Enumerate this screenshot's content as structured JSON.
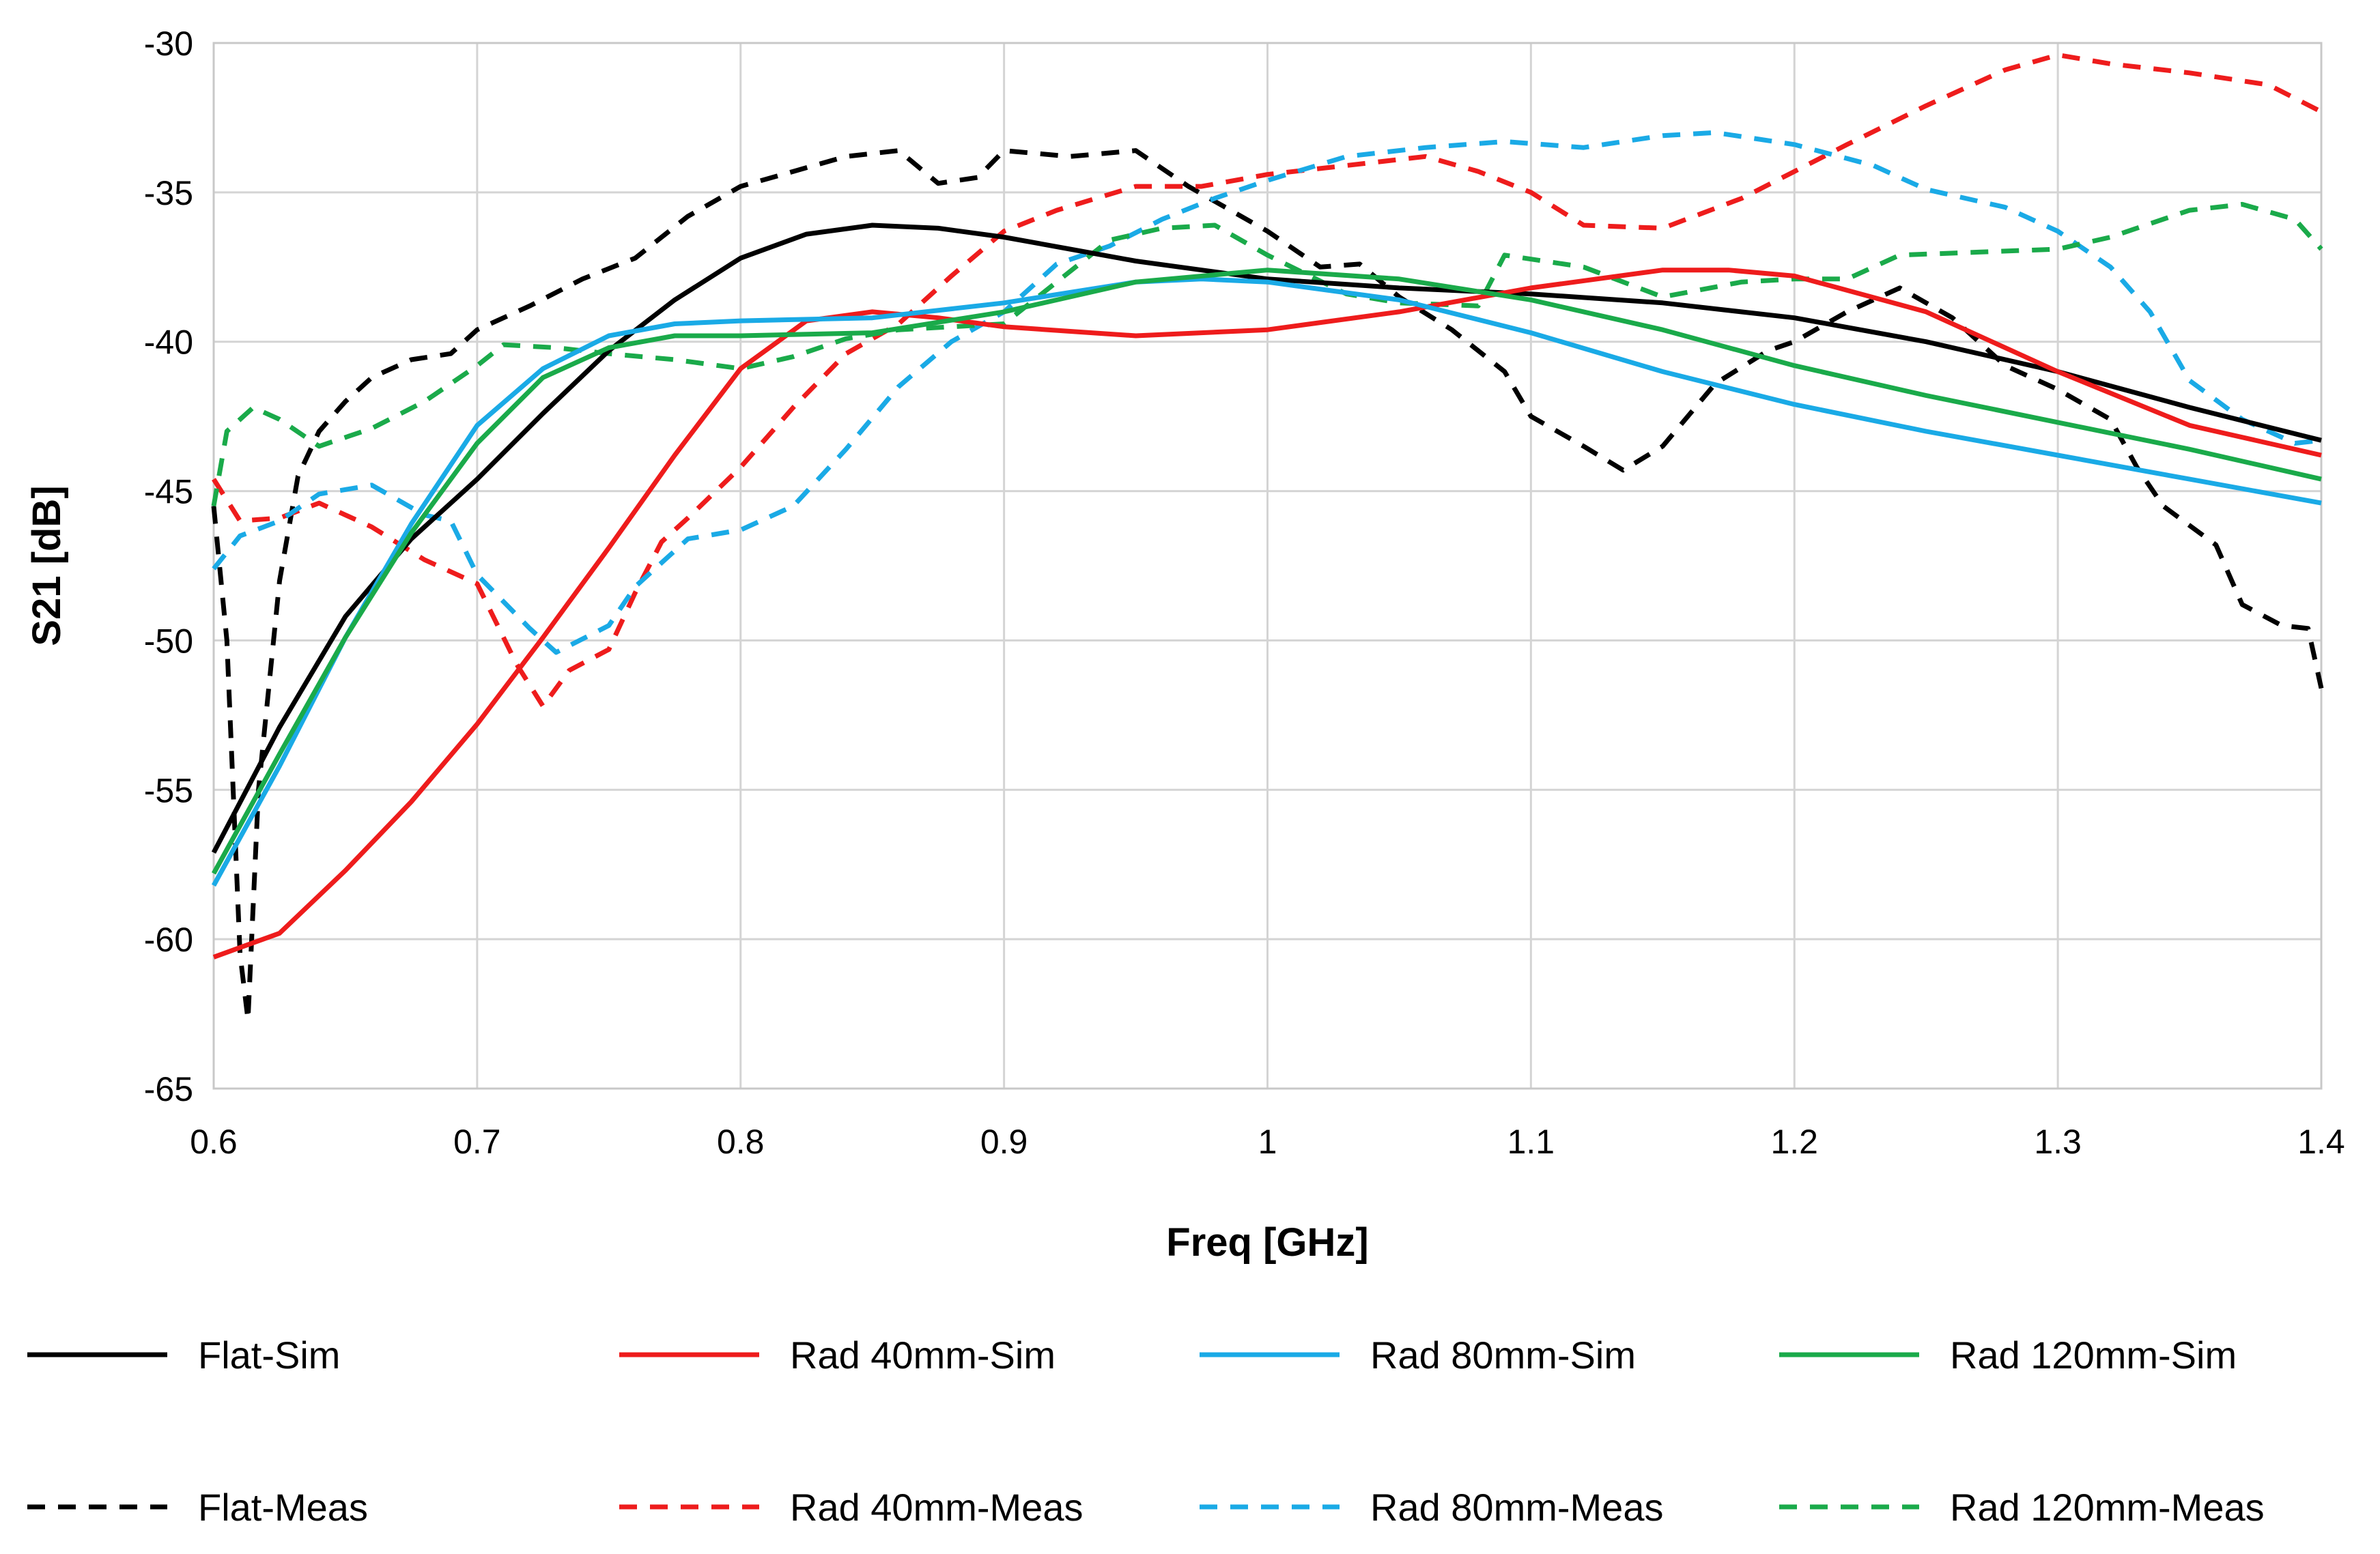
{
  "chart_data": {
    "type": "line",
    "title": "",
    "xlabel": "Freq [GHz]",
    "ylabel": "S21 [dB]",
    "xlim": [
      0.6,
      1.4
    ],
    "ylim": [
      -65,
      -30
    ],
    "grid": true,
    "legend_position": "bottom",
    "x_ticks": [
      "0.6",
      "0.7",
      "0.8",
      "0.9",
      "1",
      "1.1",
      "1.2",
      "1.3",
      "1.4"
    ],
    "x_tick_values": [
      0.6,
      0.7,
      0.8,
      0.9,
      1.0,
      1.1,
      1.2,
      1.3,
      1.4
    ],
    "y_ticks": [
      "-30",
      "-35",
      "-40",
      "-45",
      "-50",
      "-55",
      "-60",
      "-65"
    ],
    "y_tick_values": [
      -30,
      -35,
      -40,
      -45,
      -50,
      -55,
      -60,
      -65
    ],
    "series": [
      {
        "name": "Flat-Sim",
        "color": "#000000",
        "dash": "solid",
        "points": [
          [
            0.6,
            -57.1
          ],
          [
            0.625,
            -52.9
          ],
          [
            0.65,
            -49.2
          ],
          [
            0.675,
            -46.6
          ],
          [
            0.7,
            -44.6
          ],
          [
            0.725,
            -42.4
          ],
          [
            0.75,
            -40.3
          ],
          [
            0.775,
            -38.6
          ],
          [
            0.8,
            -37.2
          ],
          [
            0.825,
            -36.4
          ],
          [
            0.85,
            -36.1
          ],
          [
            0.875,
            -36.2
          ],
          [
            0.9,
            -36.5
          ],
          [
            0.925,
            -36.9
          ],
          [
            0.95,
            -37.3
          ],
          [
            0.975,
            -37.6
          ],
          [
            1.0,
            -37.9
          ],
          [
            1.05,
            -38.2
          ],
          [
            1.1,
            -38.4
          ],
          [
            1.15,
            -38.7
          ],
          [
            1.2,
            -39.2
          ],
          [
            1.25,
            -40.0
          ],
          [
            1.3,
            -41.0
          ],
          [
            1.35,
            -42.2
          ],
          [
            1.4,
            -43.3
          ]
        ]
      },
      {
        "name": "Rad 40mm-Sim",
        "color": "#ee1c1c",
        "dash": "solid",
        "points": [
          [
            0.6,
            -60.6
          ],
          [
            0.625,
            -59.8
          ],
          [
            0.65,
            -57.7
          ],
          [
            0.675,
            -55.4
          ],
          [
            0.7,
            -52.8
          ],
          [
            0.725,
            -49.9
          ],
          [
            0.75,
            -46.9
          ],
          [
            0.775,
            -43.8
          ],
          [
            0.8,
            -40.9
          ],
          [
            0.825,
            -39.3
          ],
          [
            0.85,
            -39.0
          ],
          [
            0.875,
            -39.2
          ],
          [
            0.9,
            -39.5
          ],
          [
            0.95,
            -39.8
          ],
          [
            1.0,
            -39.6
          ],
          [
            1.05,
            -39.0
          ],
          [
            1.1,
            -38.2
          ],
          [
            1.15,
            -37.6
          ],
          [
            1.175,
            -37.6
          ],
          [
            1.2,
            -37.8
          ],
          [
            1.25,
            -39.0
          ],
          [
            1.3,
            -41.0
          ],
          [
            1.35,
            -42.8
          ],
          [
            1.4,
            -43.8
          ]
        ]
      },
      {
        "name": "Rad 80mm-Sim",
        "color": "#1aaae6",
        "dash": "solid",
        "points": [
          [
            0.6,
            -58.2
          ],
          [
            0.625,
            -54.2
          ],
          [
            0.65,
            -49.9
          ],
          [
            0.675,
            -46.1
          ],
          [
            0.7,
            -42.8
          ],
          [
            0.725,
            -40.9
          ],
          [
            0.75,
            -39.8
          ],
          [
            0.775,
            -39.4
          ],
          [
            0.8,
            -39.3
          ],
          [
            0.85,
            -39.2
          ],
          [
            0.9,
            -38.7
          ],
          [
            0.95,
            -38.0
          ],
          [
            0.975,
            -37.9
          ],
          [
            1.0,
            -38.0
          ],
          [
            1.05,
            -38.6
          ],
          [
            1.1,
            -39.7
          ],
          [
            1.15,
            -41.0
          ],
          [
            1.2,
            -42.1
          ],
          [
            1.25,
            -43.0
          ],
          [
            1.3,
            -43.8
          ],
          [
            1.35,
            -44.6
          ],
          [
            1.4,
            -45.4
          ]
        ]
      },
      {
        "name": "Rad 120mm-Sim",
        "color": "#1aaa4a",
        "dash": "solid",
        "points": [
          [
            0.6,
            -57.8
          ],
          [
            0.625,
            -53.8
          ],
          [
            0.65,
            -49.9
          ],
          [
            0.675,
            -46.4
          ],
          [
            0.7,
            -43.4
          ],
          [
            0.725,
            -41.2
          ],
          [
            0.75,
            -40.2
          ],
          [
            0.775,
            -39.8
          ],
          [
            0.8,
            -39.8
          ],
          [
            0.85,
            -39.7
          ],
          [
            0.9,
            -39.0
          ],
          [
            0.95,
            -38.0
          ],
          [
            1.0,
            -37.6
          ],
          [
            1.05,
            -37.9
          ],
          [
            1.1,
            -38.6
          ],
          [
            1.15,
            -39.6
          ],
          [
            1.2,
            -40.8
          ],
          [
            1.25,
            -41.8
          ],
          [
            1.3,
            -42.7
          ],
          [
            1.35,
            -43.6
          ],
          [
            1.4,
            -44.6
          ]
        ]
      },
      {
        "name": "Flat-Meas",
        "color": "#000000",
        "dash": "dashed",
        "points": [
          [
            0.6,
            -45.5
          ],
          [
            0.605,
            -50.0
          ],
          [
            0.61,
            -60.5
          ],
          [
            0.613,
            -62.7
          ],
          [
            0.617,
            -55.0
          ],
          [
            0.625,
            -48.0
          ],
          [
            0.632,
            -44.5
          ],
          [
            0.64,
            -43.0
          ],
          [
            0.65,
            -42.0
          ],
          [
            0.66,
            -41.2
          ],
          [
            0.675,
            -40.6
          ],
          [
            0.69,
            -40.4
          ],
          [
            0.7,
            -39.6
          ],
          [
            0.72,
            -38.8
          ],
          [
            0.74,
            -37.9
          ],
          [
            0.76,
            -37.2
          ],
          [
            0.78,
            -35.8
          ],
          [
            0.8,
            -34.8
          ],
          [
            0.82,
            -34.3
          ],
          [
            0.84,
            -33.8
          ],
          [
            0.86,
            -33.6
          ],
          [
            0.875,
            -34.7
          ],
          [
            0.89,
            -34.5
          ],
          [
            0.9,
            -33.6
          ],
          [
            0.925,
            -33.8
          ],
          [
            0.95,
            -33.6
          ],
          [
            0.97,
            -34.8
          ],
          [
            1.0,
            -36.3
          ],
          [
            1.02,
            -37.5
          ],
          [
            1.035,
            -37.4
          ],
          [
            1.05,
            -38.5
          ],
          [
            1.07,
            -39.6
          ],
          [
            1.09,
            -41.0
          ],
          [
            1.1,
            -42.5
          ],
          [
            1.12,
            -43.5
          ],
          [
            1.135,
            -44.3
          ],
          [
            1.15,
            -43.5
          ],
          [
            1.17,
            -41.4
          ],
          [
            1.19,
            -40.3
          ],
          [
            1.2,
            -40.0
          ],
          [
            1.22,
            -39.0
          ],
          [
            1.24,
            -38.2
          ],
          [
            1.26,
            -39.2
          ],
          [
            1.28,
            -40.8
          ],
          [
            1.3,
            -41.6
          ],
          [
            1.32,
            -42.6
          ],
          [
            1.33,
            -44.2
          ],
          [
            1.34,
            -45.5
          ],
          [
            1.36,
            -46.8
          ],
          [
            1.37,
            -48.8
          ],
          [
            1.385,
            -49.5
          ],
          [
            1.395,
            -49.6
          ],
          [
            1.4,
            -51.6
          ]
        ]
      },
      {
        "name": "Rad 40mm-Meas",
        "color": "#ee1c1c",
        "dash": "dashed",
        "points": [
          [
            0.6,
            -44.6
          ],
          [
            0.61,
            -46.0
          ],
          [
            0.625,
            -45.9
          ],
          [
            0.64,
            -45.4
          ],
          [
            0.66,
            -46.2
          ],
          [
            0.68,
            -47.3
          ],
          [
            0.7,
            -48.1
          ],
          [
            0.715,
            -50.8
          ],
          [
            0.725,
            -52.2
          ],
          [
            0.735,
            -51.0
          ],
          [
            0.75,
            -50.3
          ],
          [
            0.76,
            -48.4
          ],
          [
            0.77,
            -46.7
          ],
          [
            0.78,
            -45.9
          ],
          [
            0.8,
            -44.2
          ],
          [
            0.82,
            -42.2
          ],
          [
            0.84,
            -40.4
          ],
          [
            0.86,
            -39.4
          ],
          [
            0.88,
            -37.8
          ],
          [
            0.9,
            -36.3
          ],
          [
            0.92,
            -35.6
          ],
          [
            0.95,
            -34.8
          ],
          [
            0.975,
            -34.8
          ],
          [
            1.0,
            -34.4
          ],
          [
            1.03,
            -34.1
          ],
          [
            1.06,
            -33.8
          ],
          [
            1.08,
            -34.3
          ],
          [
            1.1,
            -35.0
          ],
          [
            1.12,
            -36.1
          ],
          [
            1.15,
            -36.2
          ],
          [
            1.18,
            -35.2
          ],
          [
            1.2,
            -34.3
          ],
          [
            1.22,
            -33.4
          ],
          [
            1.25,
            -32.1
          ],
          [
            1.28,
            -30.9
          ],
          [
            1.3,
            -30.4
          ],
          [
            1.32,
            -30.7
          ],
          [
            1.35,
            -31.0
          ],
          [
            1.38,
            -31.4
          ],
          [
            1.4,
            -32.3
          ]
        ]
      },
      {
        "name": "Rad 80mm-Meas",
        "color": "#1aaae6",
        "dash": "dashed",
        "points": [
          [
            0.6,
            -47.6
          ],
          [
            0.61,
            -46.5
          ],
          [
            0.625,
            -46.0
          ],
          [
            0.64,
            -45.1
          ],
          [
            0.66,
            -44.8
          ],
          [
            0.68,
            -45.8
          ],
          [
            0.69,
            -46.0
          ],
          [
            0.7,
            -47.8
          ],
          [
            0.72,
            -49.6
          ],
          [
            0.73,
            -50.4
          ],
          [
            0.75,
            -49.5
          ],
          [
            0.76,
            -48.2
          ],
          [
            0.78,
            -46.6
          ],
          [
            0.8,
            -46.3
          ],
          [
            0.82,
            -45.5
          ],
          [
            0.84,
            -43.6
          ],
          [
            0.86,
            -41.5
          ],
          [
            0.88,
            -40.0
          ],
          [
            0.9,
            -39.0
          ],
          [
            0.92,
            -37.4
          ],
          [
            0.94,
            -36.8
          ],
          [
            0.96,
            -35.9
          ],
          [
            0.98,
            -35.2
          ],
          [
            1.0,
            -34.6
          ],
          [
            1.03,
            -33.8
          ],
          [
            1.06,
            -33.5
          ],
          [
            1.09,
            -33.3
          ],
          [
            1.12,
            -33.5
          ],
          [
            1.15,
            -33.1
          ],
          [
            1.17,
            -33.0
          ],
          [
            1.2,
            -33.4
          ],
          [
            1.23,
            -34.1
          ],
          [
            1.25,
            -34.9
          ],
          [
            1.28,
            -35.5
          ],
          [
            1.3,
            -36.3
          ],
          [
            1.32,
            -37.5
          ],
          [
            1.335,
            -39.0
          ],
          [
            1.35,
            -41.3
          ],
          [
            1.37,
            -42.6
          ],
          [
            1.39,
            -43.4
          ],
          [
            1.4,
            -43.3
          ]
        ]
      },
      {
        "name": "Rad 120mm-Meas",
        "color": "#1aaa4a",
        "dash": "dashed",
        "points": [
          [
            0.6,
            -45.5
          ],
          [
            0.605,
            -43.0
          ],
          [
            0.615,
            -42.2
          ],
          [
            0.625,
            -42.6
          ],
          [
            0.64,
            -43.5
          ],
          [
            0.66,
            -42.9
          ],
          [
            0.68,
            -42.0
          ],
          [
            0.7,
            -40.8
          ],
          [
            0.71,
            -40.1
          ],
          [
            0.73,
            -40.2
          ],
          [
            0.75,
            -40.4
          ],
          [
            0.775,
            -40.6
          ],
          [
            0.8,
            -40.9
          ],
          [
            0.82,
            -40.5
          ],
          [
            0.84,
            -39.9
          ],
          [
            0.86,
            -39.6
          ],
          [
            0.88,
            -39.5
          ],
          [
            0.9,
            -39.4
          ],
          [
            0.92,
            -38.0
          ],
          [
            0.94,
            -36.6
          ],
          [
            0.96,
            -36.2
          ],
          [
            0.98,
            -36.1
          ],
          [
            1.0,
            -37.1
          ],
          [
            1.03,
            -38.4
          ],
          [
            1.05,
            -38.7
          ],
          [
            1.08,
            -38.8
          ],
          [
            1.09,
            -37.1
          ],
          [
            1.12,
            -37.5
          ],
          [
            1.15,
            -38.5
          ],
          [
            1.18,
            -38.0
          ],
          [
            1.2,
            -37.9
          ],
          [
            1.22,
            -37.9
          ],
          [
            1.24,
            -37.1
          ],
          [
            1.27,
            -37.0
          ],
          [
            1.3,
            -36.9
          ],
          [
            1.32,
            -36.5
          ],
          [
            1.35,
            -35.6
          ],
          [
            1.37,
            -35.4
          ],
          [
            1.39,
            -35.9
          ],
          [
            1.4,
            -36.9
          ]
        ]
      }
    ]
  }
}
